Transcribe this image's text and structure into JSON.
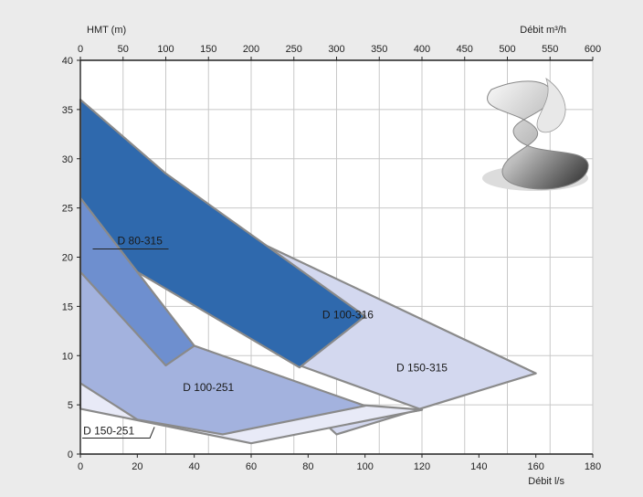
{
  "chart_data": {
    "type": "area",
    "title": "",
    "ylabel": "HMT (m)",
    "xlabel": "Débit l/s",
    "xlabel_top": "Débit m³/h",
    "ylim": [
      0,
      40
    ],
    "xlim": [
      0,
      180
    ],
    "xlim_top": [
      0,
      600
    ],
    "y_ticks": [
      0,
      5,
      10,
      15,
      20,
      25,
      30,
      35,
      40
    ],
    "x_ticks": [
      0,
      20,
      40,
      60,
      80,
      100,
      120,
      140,
      160,
      180
    ],
    "x_ticks_top": [
      0,
      50,
      100,
      150,
      200,
      250,
      300,
      350,
      400,
      450,
      500,
      550,
      600
    ],
    "grid": true,
    "series": [
      {
        "name": "D 150-315",
        "color": "#d3d8ef",
        "points": [
          [
            52,
            23
          ],
          [
            160,
            8.2
          ],
          [
            90,
            2
          ],
          [
            87,
            2.8
          ],
          [
            120,
            4.5
          ],
          [
            77,
            9
          ]
        ],
        "label_at": [
          111,
          8.4
        ]
      },
      {
        "name": "D 100-316",
        "color": "#2f69ad",
        "points": [
          [
            0,
            36
          ],
          [
            30,
            28.5
          ],
          [
            100,
            14
          ],
          [
            77,
            8.8
          ],
          [
            20,
            18.5
          ],
          [
            0,
            26
          ]
        ],
        "label_at": [
          85,
          13.8
        ]
      },
      {
        "name": "D 150-251",
        "color": "#e8eaf7",
        "points": [
          [
            0,
            4.6
          ],
          [
            60,
            1.1
          ],
          [
            120,
            4.5
          ],
          [
            0,
            7.2
          ]
        ],
        "label_at": [
          1,
          2
        ]
      },
      {
        "name": "D 100-251",
        "color": "#a3b2de",
        "points": [
          [
            0,
            18.5
          ],
          [
            40,
            11
          ],
          [
            100,
            4.9
          ],
          [
            50,
            2
          ],
          [
            20,
            3.5
          ],
          [
            0,
            7.2
          ]
        ],
        "label_at": [
          36,
          6.4
        ]
      },
      {
        "name": "D 80-315",
        "color": "#6e8fcf",
        "points": [
          [
            0,
            26
          ],
          [
            40,
            11
          ],
          [
            30,
            9
          ],
          [
            0,
            18.5
          ]
        ],
        "label_at": [
          13,
          21.3
        ]
      }
    ]
  }
}
